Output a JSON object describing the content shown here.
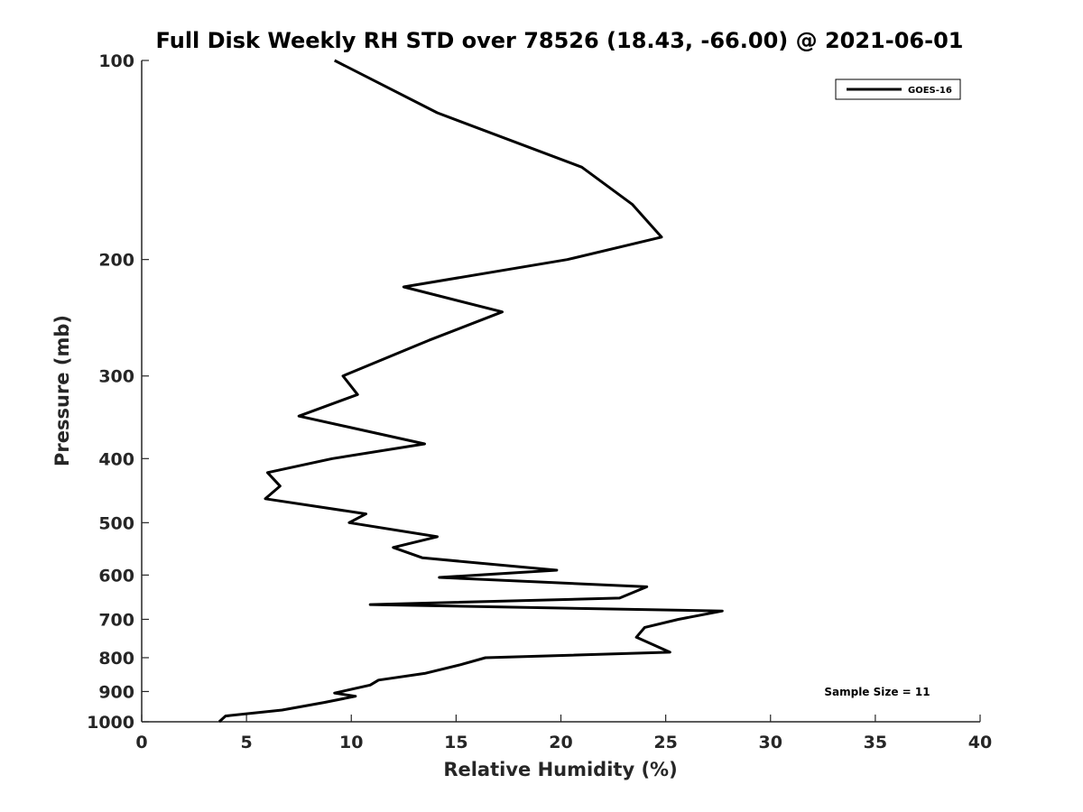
{
  "chart_data": {
    "type": "line",
    "title": "Full Disk Weekly RH STD over 78526 (18.43, -66.00) @ 2021-06-01",
    "xlabel": "Relative Humidity (%)",
    "ylabel": "Pressure (mb)",
    "xlim": [
      0,
      40
    ],
    "ylim": [
      1000,
      100
    ],
    "y_scale": "log",
    "y_inverted": true,
    "grid": false,
    "x_ticks": [
      "0",
      "5",
      "10",
      "15",
      "20",
      "25",
      "30",
      "35",
      "40"
    ],
    "y_ticks": [
      "100",
      "200",
      "300",
      "400",
      "500",
      "600",
      "700",
      "800",
      "900",
      "1000"
    ],
    "legend": {
      "placement": "top-right",
      "entries": [
        "GOES-16"
      ]
    },
    "annotation": "Sample Size = 11",
    "series": [
      {
        "name": "GOES-16",
        "color": "#000000",
        "points": [
          [
            9.2,
            100
          ],
          [
            14.1,
            120
          ],
          [
            21.0,
            145
          ],
          [
            23.4,
            165
          ],
          [
            24.8,
            185
          ],
          [
            20.3,
            200
          ],
          [
            12.5,
            220
          ],
          [
            17.2,
            240
          ],
          [
            13.7,
            265
          ],
          [
            9.6,
            300
          ],
          [
            10.3,
            320
          ],
          [
            7.5,
            345
          ],
          [
            13.5,
            380
          ],
          [
            9.1,
            400
          ],
          [
            6.0,
            420
          ],
          [
            6.6,
            440
          ],
          [
            5.9,
            460
          ],
          [
            10.7,
            485
          ],
          [
            9.9,
            500
          ],
          [
            14.1,
            525
          ],
          [
            12.0,
            545
          ],
          [
            13.4,
            565
          ],
          [
            19.8,
            590
          ],
          [
            14.2,
            605
          ],
          [
            24.1,
            625
          ],
          [
            22.8,
            650
          ],
          [
            10.9,
            665
          ],
          [
            27.7,
            680
          ],
          [
            25.6,
            700
          ],
          [
            24.0,
            720
          ],
          [
            23.6,
            745
          ],
          [
            25.2,
            785
          ],
          [
            16.4,
            800
          ],
          [
            15.2,
            820
          ],
          [
            13.5,
            845
          ],
          [
            11.3,
            865
          ],
          [
            10.9,
            880
          ],
          [
            9.2,
            905
          ],
          [
            10.2,
            915
          ],
          [
            8.7,
            935
          ],
          [
            6.7,
            960
          ],
          [
            4.0,
            980
          ],
          [
            3.7,
            1000
          ]
        ]
      }
    ]
  }
}
